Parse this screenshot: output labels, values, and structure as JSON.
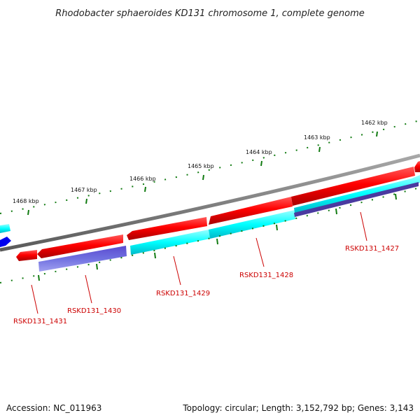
{
  "title": "Rhodobacter sphaeroides KD131 chromosome 1, complete genome",
  "footer": {
    "accession": "Accession: NC_011963",
    "summary": "Topology: circular; Length: 3,152,792 bp; Genes: 3,143"
  },
  "ruler_labels": [
    "1462 kbp",
    "1463 kbp",
    "1464 kbp",
    "1465 kbp",
    "1466 kbp",
    "1467 kbp",
    "1468 kbp"
  ],
  "gene_labels": [
    "RSKD131_1427",
    "RSKD131_1428",
    "RSKD131_1429",
    "RSKD131_1430",
    "RSKD131_1431"
  ],
  "colors": {
    "backbone": "#808080",
    "forward_gene": "#ff0000",
    "reverse_gene": "#00ffff",
    "alt_gene": "#7070e0",
    "dark_gene": "#4a3aa0",
    "blue_gene": "#0000ee",
    "ticks": "#107a10",
    "label": "#cc0000"
  }
}
